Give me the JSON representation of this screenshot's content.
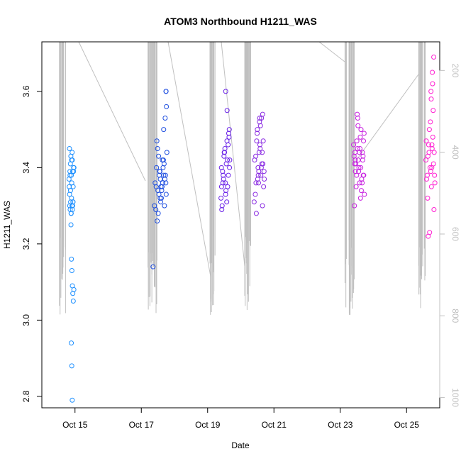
{
  "chart_data": {
    "type": "scatter",
    "title": "ATOM3 Northbound H1211_WAS",
    "xlabel": "Date",
    "ylabel": "H1211_WAS",
    "x_axis_type": "date",
    "x_range": [
      "2016-10-14",
      "2016-10-26"
    ],
    "ylim": [
      2.77,
      3.73
    ],
    "yticks": [
      2.8,
      3.0,
      3.2,
      3.4,
      3.6
    ],
    "xticks": [
      {
        "date": "2016-10-15",
        "label": "Oct 15"
      },
      {
        "date": "2016-10-17",
        "label": "Oct 17"
      },
      {
        "date": "2016-10-19",
        "label": "Oct 19"
      },
      {
        "date": "2016-10-21",
        "label": "Oct 21"
      },
      {
        "date": "2016-10-23",
        "label": "Oct 23"
      },
      {
        "date": "2016-10-25",
        "label": "Oct 25"
      }
    ],
    "right_axis": {
      "description": "pressure (reversed)",
      "range": [
        130,
        1025
      ],
      "ticks": [
        200,
        400,
        600,
        800,
        1000
      ],
      "color": "#c0c0c0"
    },
    "grid": false,
    "legend": "none",
    "point_style": "open circle",
    "series": [
      {
        "color": "#1e90ff",
        "x": [
          "2016-10-14T20:00",
          "2016-10-14T20:20",
          "2016-10-14T20:40",
          "2016-10-14T21:00",
          "2016-10-14T21:20",
          "2016-10-14T21:40",
          "2016-10-14T22:00",
          "2016-10-14T22:20",
          "2016-10-14T22:40",
          "2016-10-14T23:00",
          "2016-10-14T19:40",
          "2016-10-14T20:10",
          "2016-10-14T20:30",
          "2016-10-14T20:50",
          "2016-10-14T21:10",
          "2016-10-14T21:30",
          "2016-10-14T21:50",
          "2016-10-14T22:10",
          "2016-10-14T22:30",
          "2016-10-14T19:50",
          "2016-10-14T20:05",
          "2016-10-14T20:25",
          "2016-10-14T20:45",
          "2016-10-14T21:05",
          "2016-10-14T21:25",
          "2016-10-14T21:45",
          "2016-10-14T22:05",
          "2016-10-14T22:25",
          "2016-10-14T22:45",
          "2016-10-14T23:10",
          "2016-10-14T21:15",
          "2016-10-14T21:35",
          "2016-10-14T21:55",
          "2016-10-14T22:15",
          "2016-10-14T22:35",
          "2016-10-14T22:55",
          "2016-10-14T23:15",
          "2016-10-14T21:20",
          "2016-10-14T21:40",
          "2016-10-14T22:00"
        ],
        "y": [
          3.45,
          3.39,
          3.41,
          3.43,
          3.38,
          3.36,
          3.42,
          3.39,
          3.35,
          3.4,
          3.37,
          3.3,
          3.29,
          3.31,
          3.28,
          3.32,
          3.3,
          3.29,
          3.31,
          3.35,
          3.33,
          3.38,
          3.34,
          3.25,
          3.16,
          3.13,
          3.09,
          3.07,
          3.05,
          3.08,
          3.28,
          3.42,
          3.44,
          3.3,
          3.31,
          3.39,
          3.4,
          2.94,
          2.88,
          2.79
        ]
      },
      {
        "color": "#1f4fe0",
        "x": [
          "2016-10-17T10:00",
          "2016-10-17T11:00",
          "2016-10-17T12:00",
          "2016-10-17T13:00",
          "2016-10-17T14:00",
          "2016-10-17T15:00",
          "2016-10-17T16:00",
          "2016-10-17T17:00",
          "2016-10-17T18:00",
          "2016-10-17T10:30",
          "2016-10-17T11:30",
          "2016-10-17T12:30",
          "2016-10-17T13:30",
          "2016-10-17T14:30",
          "2016-10-17T15:30",
          "2016-10-17T16:30",
          "2016-10-17T17:30",
          "2016-10-17T18:30",
          "2016-10-17T09:30",
          "2016-10-17T10:45",
          "2016-10-17T11:45",
          "2016-10-17T12:45",
          "2016-10-17T13:45",
          "2016-10-17T14:45",
          "2016-10-17T15:45",
          "2016-10-17T16:45",
          "2016-10-17T17:45",
          "2016-10-17T12:15",
          "2016-10-17T13:15",
          "2016-10-17T14:15",
          "2016-10-17T15:15",
          "2016-10-17T16:15",
          "2016-10-17T17:15",
          "2016-10-17T08:30",
          "2016-10-17T17:50",
          "2016-10-17T17:55",
          "2016-10-17T18:10",
          "2016-10-17T11:15",
          "2016-10-17T16:10",
          "2016-10-17T13:40"
        ],
        "y": [
          3.36,
          3.4,
          3.34,
          3.38,
          3.31,
          3.35,
          3.42,
          3.37,
          3.33,
          3.29,
          3.26,
          3.43,
          3.39,
          3.32,
          3.36,
          3.41,
          3.38,
          3.44,
          3.3,
          3.35,
          3.45,
          3.33,
          3.37,
          3.34,
          3.4,
          3.3,
          3.36,
          3.28,
          3.39,
          3.35,
          3.42,
          3.38,
          3.53,
          3.14,
          3.6,
          3.6,
          3.56,
          3.47,
          3.5,
          3.32
        ]
      },
      {
        "color": "#6a22e8",
        "x": [
          "2016-10-19T10:00",
          "2016-10-19T11:00",
          "2016-10-19T12:00",
          "2016-10-19T13:00",
          "2016-10-19T14:00",
          "2016-10-19T15:00",
          "2016-10-19T16:00",
          "2016-10-19T10:30",
          "2016-10-19T11:30",
          "2016-10-19T12:30",
          "2016-10-19T13:30",
          "2016-10-19T14:30",
          "2016-10-19T15:30",
          "2016-10-19T09:40",
          "2016-10-19T10:50",
          "2016-10-19T11:50",
          "2016-10-19T12:50",
          "2016-10-19T13:50",
          "2016-10-19T14:50",
          "2016-10-19T15:50",
          "2016-10-19T10:15",
          "2016-10-19T11:15",
          "2016-10-19T12:15",
          "2016-10-19T13:15",
          "2016-10-19T14:15",
          "2016-10-19T15:15",
          "2016-10-19T13:05",
          "2016-10-19T14:05",
          "2016-10-19T10:05",
          "2016-10-19T15:40"
        ],
        "y": [
          3.4,
          3.36,
          3.44,
          3.33,
          3.47,
          3.38,
          3.42,
          3.3,
          3.37,
          3.45,
          3.41,
          3.35,
          3.48,
          3.32,
          3.39,
          3.43,
          3.36,
          3.31,
          3.46,
          3.4,
          3.29,
          3.38,
          3.44,
          3.34,
          3.42,
          3.49,
          3.6,
          3.55,
          3.35,
          3.5
        ]
      },
      {
        "color": "#8a2be2",
        "x": [
          "2016-10-20T10:00",
          "2016-10-20T11:00",
          "2016-10-20T12:00",
          "2016-10-20T13:00",
          "2016-10-20T14:00",
          "2016-10-20T15:00",
          "2016-10-20T16:00",
          "2016-10-20T17:00",
          "2016-10-20T10:30",
          "2016-10-20T11:30",
          "2016-10-20T12:30",
          "2016-10-20T13:30",
          "2016-10-20T14:30",
          "2016-10-20T15:30",
          "2016-10-20T16:30",
          "2016-10-20T09:40",
          "2016-10-20T10:50",
          "2016-10-20T11:50",
          "2016-10-20T12:50",
          "2016-10-20T13:50",
          "2016-10-20T14:50",
          "2016-10-20T15:50",
          "2016-10-20T16:50",
          "2016-10-20T11:15",
          "2016-10-20T12:15",
          "2016-10-20T13:15",
          "2016-10-20T14:15",
          "2016-10-20T15:15",
          "2016-10-20T16:15",
          "2016-10-20T15:40",
          "2016-10-20T13:40",
          "2016-10-20T12:40"
        ],
        "y": [
          3.42,
          3.36,
          3.5,
          3.39,
          3.45,
          3.53,
          3.41,
          3.37,
          3.33,
          3.47,
          3.4,
          3.52,
          3.38,
          3.44,
          3.35,
          3.31,
          3.43,
          3.49,
          3.36,
          3.46,
          3.4,
          3.54,
          3.39,
          3.28,
          3.37,
          3.44,
          3.51,
          3.41,
          3.47,
          3.3,
          3.53,
          3.38
        ]
      },
      {
        "color": "#c71ee0",
        "x": [
          "2016-10-23T10:00",
          "2016-10-23T11:00",
          "2016-10-23T12:00",
          "2016-10-23T13:00",
          "2016-10-23T14:00",
          "2016-10-23T15:00",
          "2016-10-23T16:00",
          "2016-10-23T17:00",
          "2016-10-23T10:30",
          "2016-10-23T11:30",
          "2016-10-23T12:30",
          "2016-10-23T13:30",
          "2016-10-23T14:30",
          "2016-10-23T15:30",
          "2016-10-23T16:30",
          "2016-10-23T17:30",
          "2016-10-23T09:40",
          "2016-10-23T10:50",
          "2016-10-23T11:50",
          "2016-10-23T12:50",
          "2016-10-23T13:50",
          "2016-10-23T14:50",
          "2016-10-23T15:50",
          "2016-10-23T16:50",
          "2016-10-23T10:15",
          "2016-10-23T11:15",
          "2016-10-23T12:15",
          "2016-10-23T13:15",
          "2016-10-23T14:15",
          "2016-10-23T15:15",
          "2016-10-23T16:15",
          "2016-10-23T17:15",
          "2016-10-23T12:40",
          "2016-10-23T14:40",
          "2016-10-23T10:40",
          "2016-10-23T16:40"
        ],
        "y": [
          3.43,
          3.39,
          3.47,
          3.42,
          3.36,
          3.5,
          3.44,
          3.38,
          3.41,
          3.35,
          3.45,
          3.4,
          3.48,
          3.37,
          3.43,
          3.33,
          3.46,
          3.42,
          3.38,
          3.51,
          3.44,
          3.4,
          3.36,
          3.47,
          3.3,
          3.41,
          3.54,
          3.39,
          3.45,
          3.34,
          3.42,
          3.49,
          3.53,
          3.32,
          3.44,
          3.38
        ]
      },
      {
        "color": "#ff1fd2",
        "x": [
          "2016-10-25T14:00",
          "2016-10-25T15:00",
          "2016-10-25T16:00",
          "2016-10-25T17:00",
          "2016-10-25T18:00",
          "2016-10-25T19:00",
          "2016-10-25T20:00",
          "2016-10-25T14:30",
          "2016-10-25T15:30",
          "2016-10-25T16:30",
          "2016-10-25T17:30",
          "2016-10-25T18:30",
          "2016-10-25T19:30",
          "2016-10-25T20:30",
          "2016-10-25T14:15",
          "2016-10-25T15:15",
          "2016-10-25T16:15",
          "2016-10-25T17:15",
          "2016-10-25T18:15",
          "2016-10-25T19:15",
          "2016-10-25T20:15",
          "2016-10-25T17:40",
          "2016-10-25T18:40",
          "2016-10-25T19:40",
          "2016-10-25T16:40",
          "2016-10-25T15:40",
          "2016-10-25T17:50",
          "2016-10-25T18:50",
          "2016-10-25T19:50",
          "2016-10-25T18:20"
        ],
        "y": [
          3.42,
          3.38,
          3.46,
          3.4,
          3.35,
          3.48,
          3.44,
          3.37,
          3.43,
          3.5,
          3.39,
          3.45,
          3.41,
          3.36,
          3.47,
          3.32,
          3.44,
          3.52,
          3.4,
          3.55,
          3.38,
          3.6,
          3.65,
          3.69,
          3.23,
          3.22,
          3.58,
          3.62,
          3.29,
          3.46
        ]
      }
    ],
    "gray_traces_color": "#c0c0c0"
  }
}
